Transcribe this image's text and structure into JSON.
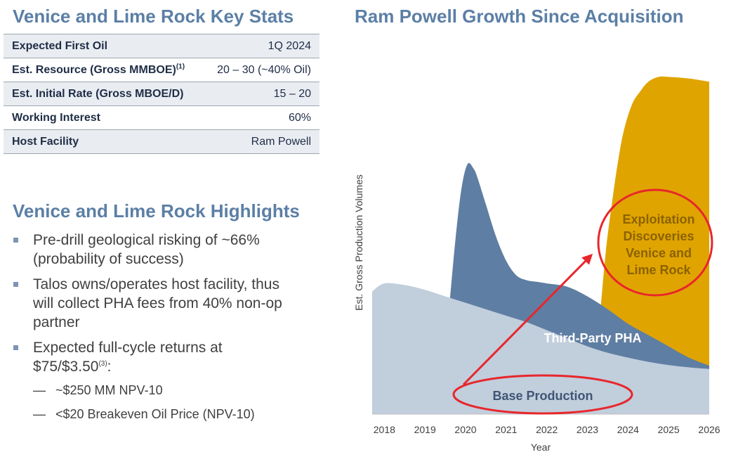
{
  "left": {
    "title": "Venice and Lime Rock Key Stats",
    "stats": [
      {
        "label": "Expected First Oil",
        "note": "",
        "value": "1Q 2024"
      },
      {
        "label": "Est. Resource (Gross MMBOE)",
        "note": "(1)",
        "value": "20 – 30 (~40% Oil)"
      },
      {
        "label": "Est. Initial Rate (Gross MBOE/D)",
        "note": "",
        "value": "15 – 20"
      },
      {
        "label": "Working Interest",
        "note": "",
        "value": "60%"
      },
      {
        "label": "Host Facility",
        "note": "",
        "value": "Ram Powell"
      }
    ],
    "highlights_title": "Venice and Lime Rock Highlights",
    "highlights": {
      "b1_line1": "Pre-drill geological risking of ~66%",
      "b1_line2": "(probability of success)",
      "b2_line1": "Talos owns/operates host facility, thus",
      "b2_line2": "will collect PHA fees from 40% non-op",
      "b2_line3": "partner",
      "b3_line1": "Expected full-cycle returns at",
      "b3_line2": "$75/$3.50",
      "b3_sup": "(3)",
      "b3_tail": ":",
      "sub1": "~$250 MM NPV-10",
      "sub2": "<$20 Breakeven Oil Price (NPV-10)"
    }
  },
  "chart_data": {
    "type": "area",
    "title": "Ram Powell Growth Since Acquisition",
    "xlabel": "Year",
    "ylabel": "Est. Gross Production Volumes",
    "x_ticks": [
      "2018",
      "2019",
      "2020",
      "2021",
      "2022",
      "2023",
      "2024",
      "2025",
      "2026"
    ],
    "xlim": [
      2017.7,
      2026
    ],
    "ylim": [
      0,
      100
    ],
    "colors": {
      "base": "#c1cedc",
      "pha": "#5f7ea3",
      "exploit": "#e0a400",
      "annotation": "#e8262c",
      "label_dark": "#3f5675"
    },
    "series": [
      {
        "name": "Base Production",
        "x": [
          2017.7,
          2018.0,
          2018.5,
          2019.0,
          2019.5,
          2020.0,
          2020.5,
          2021.0,
          2021.5,
          2022.0,
          2022.5,
          2023.0,
          2023.5,
          2024.0,
          2024.5,
          2025.0,
          2025.5,
          2026.0
        ],
        "y": [
          38,
          40.5,
          40,
          38.5,
          36.5,
          34.5,
          32.5,
          30.5,
          28.5,
          26,
          23.5,
          21,
          19,
          17.5,
          16.2,
          15.2,
          14.5,
          14
        ]
      },
      {
        "name": "Third-Party PHA",
        "x": [
          2019.6,
          2019.75,
          2019.9,
          2020.05,
          2020.2,
          2020.3,
          2020.5,
          2020.75,
          2021.0,
          2021.25,
          2021.5,
          2021.75,
          2022.0,
          2022.5,
          2023.0,
          2023.5,
          2024.0,
          2024.5,
          2025.0,
          2025.5,
          2026.0
        ],
        "y": [
          33.5,
          54,
          70,
          77.5,
          76,
          73,
          65,
          55,
          47.5,
          43,
          41.5,
          41,
          40.5,
          39.5,
          36.5,
          32.5,
          28,
          24.5,
          21,
          17.5,
          15
        ]
      },
      {
        "name": "Exploitation Discoveries Venice and Lime Rock",
        "x": [
          2023.3,
          2023.45,
          2023.6,
          2023.75,
          2023.9,
          2024.1,
          2024.3,
          2024.5,
          2024.75,
          2025.0,
          2025.5,
          2026.0
        ],
        "y": [
          29,
          50,
          65,
          78,
          88,
          96,
          100,
          103,
          104.5,
          104.5,
          104,
          103
        ]
      }
    ],
    "annotations": {
      "base_label": "Base Production",
      "pha_label": "Third-Party PHA",
      "exploit_line1": "Exploitation",
      "exploit_line2": "Discoveries",
      "exploit_line3": "Venice and",
      "exploit_line4": "Lime Rock"
    }
  }
}
